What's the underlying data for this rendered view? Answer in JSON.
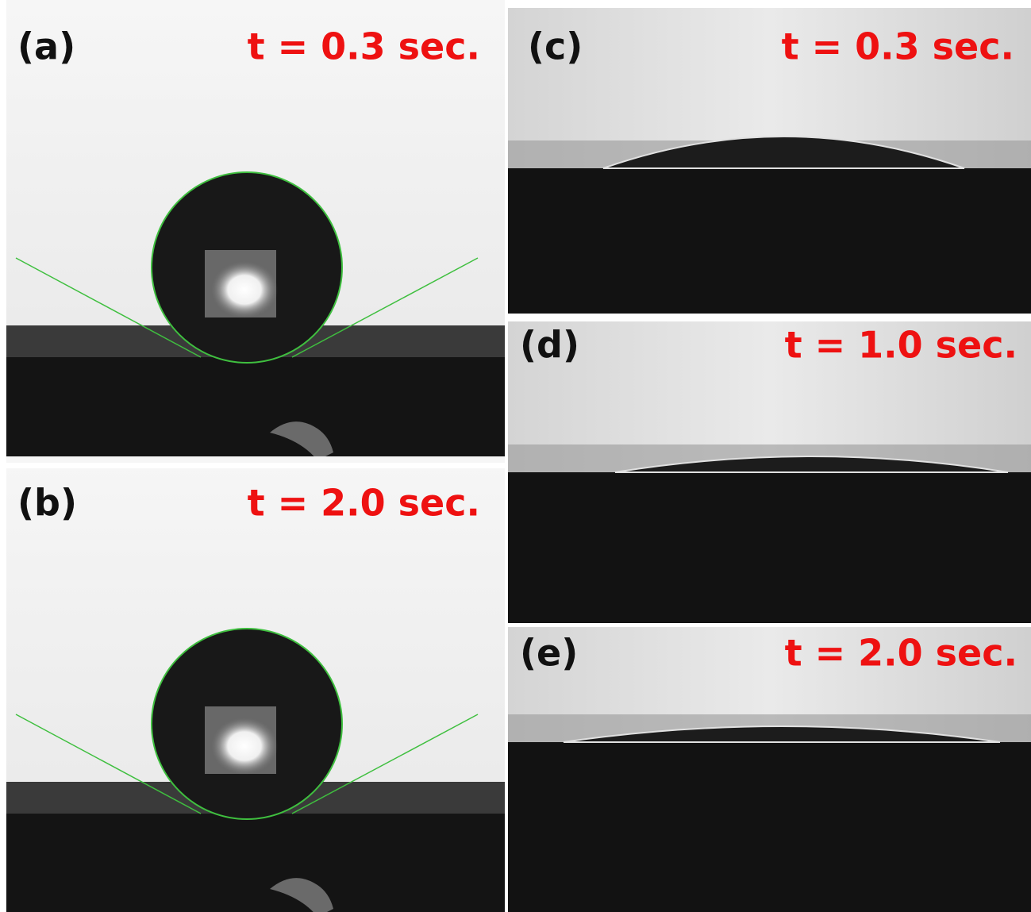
{
  "panels": [
    {
      "label": "(a)",
      "time": "t = 0.3 sec."
    },
    {
      "label": "(b)",
      "time": "t = 2.0 sec."
    },
    {
      "label": "(c)",
      "time": "t = 0.3 sec."
    },
    {
      "label": "(d)",
      "time": "t = 1.0 sec."
    },
    {
      "label": "(e)",
      "time": "t = 2.0 sec."
    }
  ]
}
